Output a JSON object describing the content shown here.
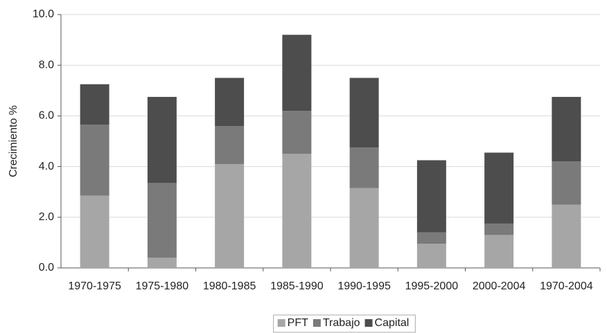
{
  "chart_data": {
    "type": "stacked_bar",
    "y_label": "Crecimiento %",
    "categories": [
      "1970-1975",
      "1975-1980",
      "1980-1985",
      "1985-1990",
      "1990-1995",
      "1995-2000",
      "2000-2004",
      "1970-2004"
    ],
    "series": [
      {
        "name": "PFT",
        "color": "#a6a6a6",
        "values": [
          2.85,
          0.4,
          4.1,
          4.5,
          3.15,
          0.95,
          1.3,
          2.5
        ]
      },
      {
        "name": "Trabajo",
        "color": "#7a7a7a",
        "values": [
          2.8,
          2.95,
          1.5,
          1.7,
          1.6,
          0.45,
          0.45,
          1.7
        ]
      },
      {
        "name": "Capital",
        "color": "#4d4d4d",
        "values": [
          1.6,
          3.4,
          1.9,
          3.0,
          2.75,
          2.85,
          2.8,
          2.55
        ]
      }
    ],
    "ylim": [
      0,
      10
    ],
    "yticks": [
      {
        "value": 0,
        "label": "0.0"
      },
      {
        "value": 2,
        "label": "2.0"
      },
      {
        "value": 4,
        "label": "4.0"
      },
      {
        "value": 6,
        "label": "6.0"
      },
      {
        "value": 8,
        "label": "8.0"
      },
      {
        "value": 10,
        "label": "10.0"
      }
    ],
    "grid": true,
    "legend": "bottom"
  }
}
